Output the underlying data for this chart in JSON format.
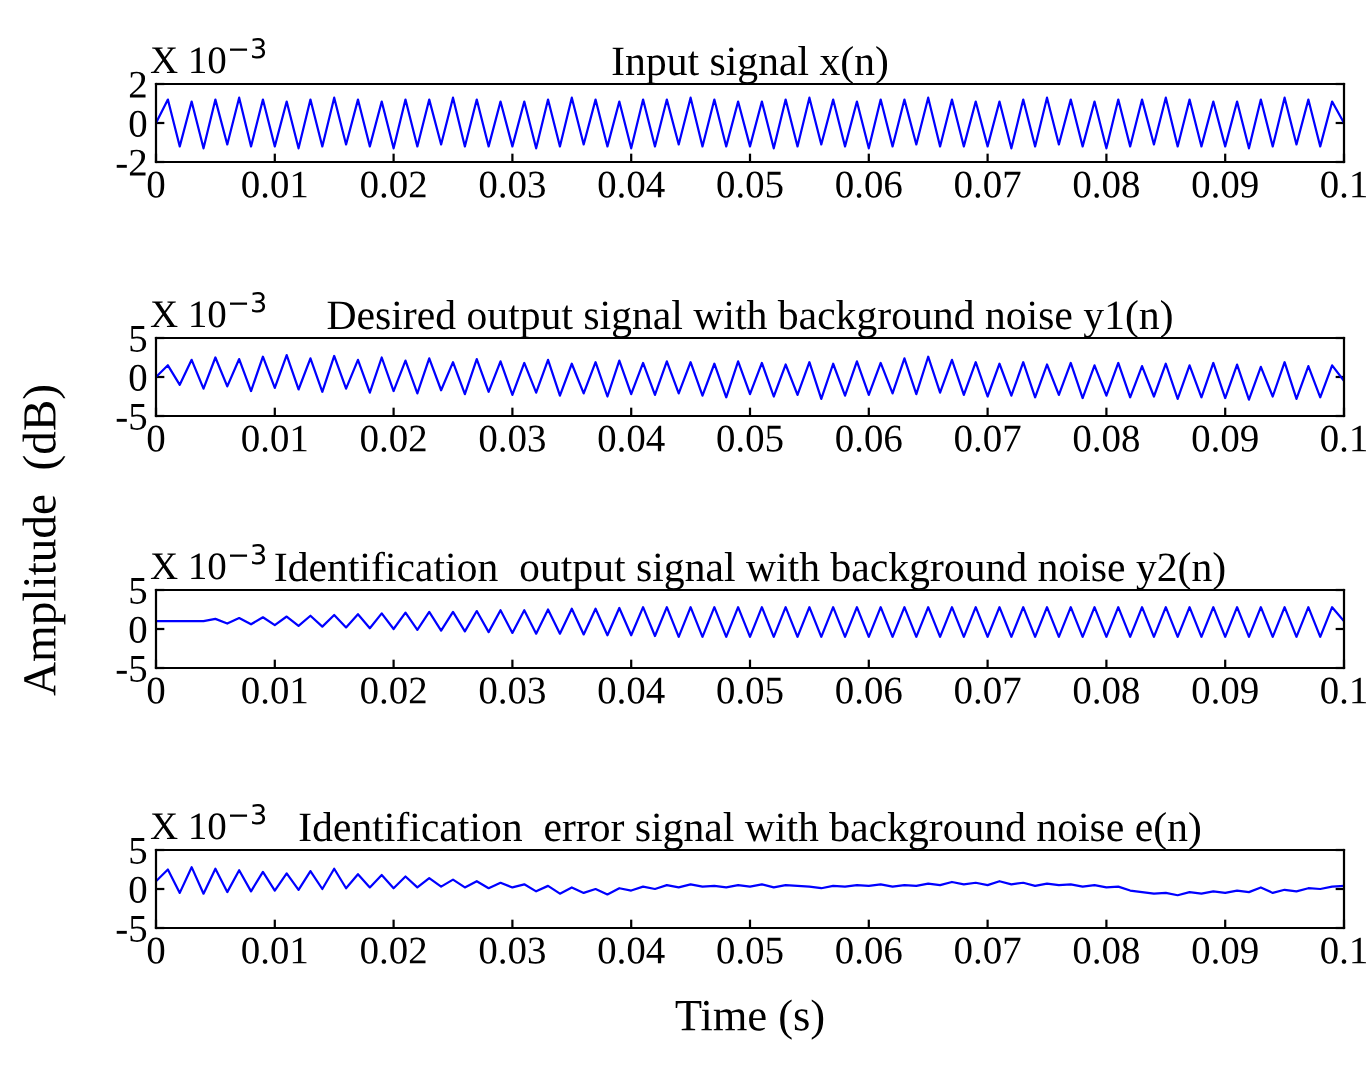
{
  "chart_data": [
    {
      "type": "line",
      "title": "Input signal x(n)",
      "annotations": [
        "X 10$^{−3}$"
      ],
      "xlim": [
        0,
        0.1
      ],
      "xticks": [
        0,
        0.01,
        0.02,
        0.03,
        0.04,
        0.05,
        0.06,
        0.07,
        0.08,
        0.09,
        0.1
      ],
      "ylim": [
        -2,
        2
      ],
      "yticks": [
        -2,
        0,
        2
      ],
      "grid": false,
      "series": [
        {
          "color": "#0000ff",
          "x": [
            0,
            0.001,
            0.002,
            0.003,
            0.004,
            0.005,
            0.006,
            0.007,
            0.008,
            0.009,
            0.01,
            0.011,
            0.012,
            0.013,
            0.014,
            0.015,
            0.016,
            0.017,
            0.018,
            0.019,
            0.02,
            0.021,
            0.022,
            0.023,
            0.024,
            0.025,
            0.026,
            0.027,
            0.028,
            0.029,
            0.03,
            0.031,
            0.032,
            0.033,
            0.034,
            0.035,
            0.036,
            0.037,
            0.038,
            0.039,
            0.04,
            0.041,
            0.042,
            0.043,
            0.044,
            0.045,
            0.046,
            0.047,
            0.048,
            0.049,
            0.05,
            0.051,
            0.052,
            0.053,
            0.054,
            0.055,
            0.056,
            0.057,
            0.058,
            0.059,
            0.06,
            0.061,
            0.062,
            0.063,
            0.064,
            0.065,
            0.066,
            0.067,
            0.068,
            0.069,
            0.07,
            0.071,
            0.072,
            0.073,
            0.074,
            0.075,
            0.076,
            0.077,
            0.078,
            0.079,
            0.08,
            0.081,
            0.082,
            0.083,
            0.084,
            0.085,
            0.086,
            0.087,
            0.088,
            0.089,
            0.09,
            0.091,
            0.092,
            0.093,
            0.094,
            0.095,
            0.096,
            0.097,
            0.098,
            0.099,
            0.1
          ],
          "values": [
            0,
            1.2,
            -1.2,
            1.1,
            -1.3,
            1.2,
            -1.1,
            1.3,
            -1.2,
            1.2,
            -1.2,
            1.1,
            -1.3,
            1.2,
            -1.2,
            1.3,
            -1.1,
            1.2,
            -1.2,
            1.1,
            -1.3,
            1.2,
            -1.2,
            1.2,
            -1.1,
            1.3,
            -1.2,
            1.2,
            -1.2,
            1.1,
            -1.2,
            1.1,
            -1.3,
            1.2,
            -1.2,
            1.3,
            -1.1,
            1.2,
            -1.2,
            1.1,
            -1.3,
            1.2,
            -1.2,
            1.2,
            -1.1,
            1.3,
            -1.2,
            1.2,
            -1.2,
            1.1,
            -1.2,
            1.1,
            -1.3,
            1.2,
            -1.2,
            1.3,
            -1.1,
            1.2,
            -1.2,
            1.1,
            -1.3,
            1.2,
            -1.2,
            1.2,
            -1.1,
            1.3,
            -1.2,
            1.2,
            -1.2,
            1.1,
            -1.2,
            1.1,
            -1.3,
            1.2,
            -1.2,
            1.3,
            -1.1,
            1.2,
            -1.2,
            1.1,
            -1.3,
            1.2,
            -1.2,
            1.2,
            -1.1,
            1.3,
            -1.2,
            1.2,
            -1.2,
            1.1,
            -1.2,
            1.1,
            -1.3,
            1.2,
            -1.2,
            1.3,
            -1.1,
            1.2,
            -1.2,
            1.1,
            0
          ]
        }
      ]
    },
    {
      "type": "line",
      "title": "Desired output signal with background noise y1(n)",
      "ylabel": "Amplitude  (dB)",
      "annotations": [
        "X 10$^{−3}$"
      ],
      "xlim": [
        0,
        0.1
      ],
      "xticks": [
        0,
        0.01,
        0.02,
        0.03,
        0.04,
        0.05,
        0.06,
        0.07,
        0.08,
        0.09,
        0.1
      ],
      "ylim": [
        -5,
        5
      ],
      "yticks": [
        -5,
        0,
        5
      ],
      "grid": false,
      "series": [
        {
          "color": "#0000ff",
          "x": [
            0,
            0.001,
            0.002,
            0.003,
            0.004,
            0.005,
            0.006,
            0.007,
            0.008,
            0.009,
            0.01,
            0.011,
            0.012,
            0.013,
            0.014,
            0.015,
            0.016,
            0.017,
            0.018,
            0.019,
            0.02,
            0.021,
            0.022,
            0.023,
            0.024,
            0.025,
            0.026,
            0.027,
            0.028,
            0.029,
            0.03,
            0.031,
            0.032,
            0.033,
            0.034,
            0.035,
            0.036,
            0.037,
            0.038,
            0.039,
            0.04,
            0.041,
            0.042,
            0.043,
            0.044,
            0.045,
            0.046,
            0.047,
            0.048,
            0.049,
            0.05,
            0.051,
            0.052,
            0.053,
            0.054,
            0.055,
            0.056,
            0.057,
            0.058,
            0.059,
            0.06,
            0.061,
            0.062,
            0.063,
            0.064,
            0.065,
            0.066,
            0.067,
            0.068,
            0.069,
            0.07,
            0.071,
            0.072,
            0.073,
            0.074,
            0.075,
            0.076,
            0.077,
            0.078,
            0.079,
            0.08,
            0.081,
            0.082,
            0.083,
            0.084,
            0.085,
            0.086,
            0.087,
            0.088,
            0.089,
            0.09,
            0.091,
            0.092,
            0.093,
            0.094,
            0.095,
            0.096,
            0.097,
            0.098,
            0.099,
            0.1
          ],
          "values": [
            0,
            1.5,
            -1.0,
            2.2,
            -1.5,
            2.5,
            -1.2,
            2.3,
            -1.8,
            2.6,
            -1.4,
            2.8,
            -1.6,
            2.4,
            -1.9,
            2.7,
            -1.5,
            2.2,
            -2.0,
            2.5,
            -1.8,
            2.1,
            -2.1,
            2.4,
            -1.7,
            1.9,
            -2.2,
            2.3,
            -1.9,
            2.0,
            -2.3,
            1.8,
            -2.0,
            2.2,
            -2.4,
            1.7,
            -2.1,
            1.9,
            -2.5,
            2.1,
            -2.2,
            1.8,
            -2.3,
            2.0,
            -2.1,
            1.9,
            -2.4,
            1.7,
            -2.6,
            2.0,
            -2.2,
            1.8,
            -2.5,
            1.6,
            -2.3,
            1.9,
            -2.8,
            1.7,
            -2.4,
            2.0,
            -2.3,
            1.8,
            -2.1,
            2.4,
            -2.2,
            2.6,
            -2.0,
            2.2,
            -2.3,
            1.9,
            -2.5,
            1.7,
            -2.4,
            1.9,
            -2.6,
            1.6,
            -2.3,
            1.8,
            -2.7,
            1.5,
            -2.4,
            1.8,
            -2.6,
            1.4,
            -2.5,
            1.7,
            -2.8,
            1.5,
            -2.6,
            1.8,
            -2.7,
            1.6,
            -2.9,
            1.3,
            -2.5,
            1.9,
            -2.8,
            1.4,
            -2.6,
            1.5,
            -0.5
          ]
        }
      ]
    },
    {
      "type": "line",
      "title": "Identification  output signal with background noise y2(n)",
      "annotations": [
        "X 10$^{−3}$"
      ],
      "xlim": [
        0,
        0.1
      ],
      "xticks": [
        0,
        0.01,
        0.02,
        0.03,
        0.04,
        0.05,
        0.06,
        0.07,
        0.08,
        0.09,
        0.1
      ],
      "ylim": [
        -5,
        5
      ],
      "yticks": [
        -5,
        0,
        5
      ],
      "grid": false,
      "series": [
        {
          "color": "#0000ff",
          "x": [
            0,
            0.001,
            0.002,
            0.003,
            0.004,
            0.005,
            0.006,
            0.007,
            0.008,
            0.009,
            0.01,
            0.011,
            0.012,
            0.013,
            0.014,
            0.015,
            0.016,
            0.017,
            0.018,
            0.019,
            0.02,
            0.021,
            0.022,
            0.023,
            0.024,
            0.025,
            0.026,
            0.027,
            0.028,
            0.029,
            0.03,
            0.031,
            0.032,
            0.033,
            0.034,
            0.035,
            0.036,
            0.037,
            0.038,
            0.039,
            0.04,
            0.041,
            0.042,
            0.043,
            0.044,
            0.045,
            0.046,
            0.047,
            0.048,
            0.049,
            0.05,
            0.051,
            0.052,
            0.053,
            0.054,
            0.055,
            0.056,
            0.057,
            0.058,
            0.059,
            0.06,
            0.061,
            0.062,
            0.063,
            0.064,
            0.065,
            0.066,
            0.067,
            0.068,
            0.069,
            0.07,
            0.071,
            0.072,
            0.073,
            0.074,
            0.075,
            0.076,
            0.077,
            0.078,
            0.079,
            0.08,
            0.081,
            0.082,
            0.083,
            0.084,
            0.085,
            0.086,
            0.087,
            0.088,
            0.089,
            0.09,
            0.091,
            0.092,
            0.093,
            0.094,
            0.095,
            0.096,
            0.097,
            0.098,
            0.099,
            0.1
          ],
          "values": [
            1,
            1,
            1,
            1,
            1,
            1.3,
            0.7,
            1.4,
            0.6,
            1.5,
            0.5,
            1.6,
            0.4,
            1.7,
            0.3,
            1.8,
            0.2,
            1.9,
            0.1,
            2.0,
            0,
            2.1,
            -0.1,
            2.2,
            -0.2,
            2.2,
            -0.3,
            2.3,
            -0.4,
            2.4,
            -0.5,
            2.4,
            -0.6,
            2.5,
            -0.6,
            2.6,
            -0.7,
            2.6,
            -0.8,
            2.7,
            -0.8,
            2.8,
            -0.9,
            2.8,
            -1.0,
            2.8,
            -1.0,
            2.8,
            -1.0,
            2.8,
            -1.0,
            2.8,
            -1.0,
            2.8,
            -1.0,
            2.8,
            -1.0,
            2.8,
            -1.0,
            2.8,
            -1.0,
            2.8,
            -1.0,
            2.8,
            -1.0,
            2.8,
            -1.0,
            2.8,
            -1.0,
            2.8,
            -1.0,
            2.8,
            -1.0,
            2.8,
            -1.0,
            2.8,
            -1.0,
            2.8,
            -1.0,
            2.8,
            -1.0,
            2.8,
            -1.0,
            2.8,
            -1.0,
            2.8,
            -1.0,
            2.8,
            -1.0,
            2.8,
            -1.0,
            2.8,
            -1.0,
            2.8,
            -1.0,
            2.8,
            -1.0,
            2.8,
            -1.0,
            2.8,
            1
          ]
        }
      ]
    },
    {
      "type": "line",
      "title": "Identification  error signal with background noise e(n)",
      "xlabel": "Time (s)",
      "annotations": [
        "X 10$^{−3}$"
      ],
      "xlim": [
        0,
        0.1
      ],
      "xticks": [
        0,
        0.01,
        0.02,
        0.03,
        0.04,
        0.05,
        0.06,
        0.07,
        0.08,
        0.09,
        0.1
      ],
      "ylim": [
        -5,
        5
      ],
      "yticks": [
        -5,
        0,
        5
      ],
      "grid": false,
      "series": [
        {
          "color": "#0000ff",
          "x": [
            0,
            0.001,
            0.002,
            0.003,
            0.004,
            0.005,
            0.006,
            0.007,
            0.008,
            0.009,
            0.01,
            0.011,
            0.012,
            0.013,
            0.014,
            0.015,
            0.016,
            0.017,
            0.018,
            0.019,
            0.02,
            0.021,
            0.022,
            0.023,
            0.024,
            0.025,
            0.026,
            0.027,
            0.028,
            0.029,
            0.03,
            0.031,
            0.032,
            0.033,
            0.034,
            0.035,
            0.036,
            0.037,
            0.038,
            0.039,
            0.04,
            0.041,
            0.042,
            0.043,
            0.044,
            0.045,
            0.046,
            0.047,
            0.048,
            0.049,
            0.05,
            0.051,
            0.052,
            0.053,
            0.054,
            0.055,
            0.056,
            0.057,
            0.058,
            0.059,
            0.06,
            0.061,
            0.062,
            0.063,
            0.064,
            0.065,
            0.066,
            0.067,
            0.068,
            0.069,
            0.07,
            0.071,
            0.072,
            0.073,
            0.074,
            0.075,
            0.076,
            0.077,
            0.078,
            0.079,
            0.08,
            0.081,
            0.082,
            0.083,
            0.084,
            0.085,
            0.086,
            0.087,
            0.088,
            0.089,
            0.09,
            0.091,
            0.092,
            0.093,
            0.094,
            0.095,
            0.096,
            0.097,
            0.098,
            0.099,
            0.1
          ],
          "values": [
            1,
            2.5,
            -0.5,
            2.8,
            -0.6,
            2.6,
            -0.4,
            2.4,
            -0.3,
            2.2,
            -0.2,
            2.0,
            -0.1,
            2.3,
            0,
            2.6,
            0.1,
            1.9,
            0.2,
            1.8,
            0.1,
            1.6,
            0.2,
            1.4,
            0.3,
            1.2,
            0.2,
            1.0,
            0.1,
            0.8,
            0.2,
            0.6,
            -0.3,
            0.4,
            -0.6,
            0.2,
            -0.5,
            0,
            -0.7,
            0.1,
            -0.2,
            0.3,
            0,
            0.5,
            0.2,
            0.6,
            0.3,
            0.4,
            0.2,
            0.5,
            0.3,
            0.6,
            0.2,
            0.5,
            0.4,
            0.3,
            0.1,
            0.4,
            0.3,
            0.5,
            0.4,
            0.6,
            0.3,
            0.5,
            0.4,
            0.7,
            0.5,
            0.9,
            0.6,
            0.8,
            0.5,
            1.0,
            0.6,
            0.8,
            0.4,
            0.7,
            0.5,
            0.6,
            0.3,
            0.5,
            0.2,
            0.3,
            -0.2,
            -0.4,
            -0.6,
            -0.5,
            -0.8,
            -0.4,
            -0.6,
            -0.3,
            -0.5,
            -0.2,
            -0.4,
            0.2,
            -0.5,
            -0.1,
            -0.3,
            0.1,
            0,
            0.3,
            0.4
          ]
        }
      ]
    }
  ]
}
